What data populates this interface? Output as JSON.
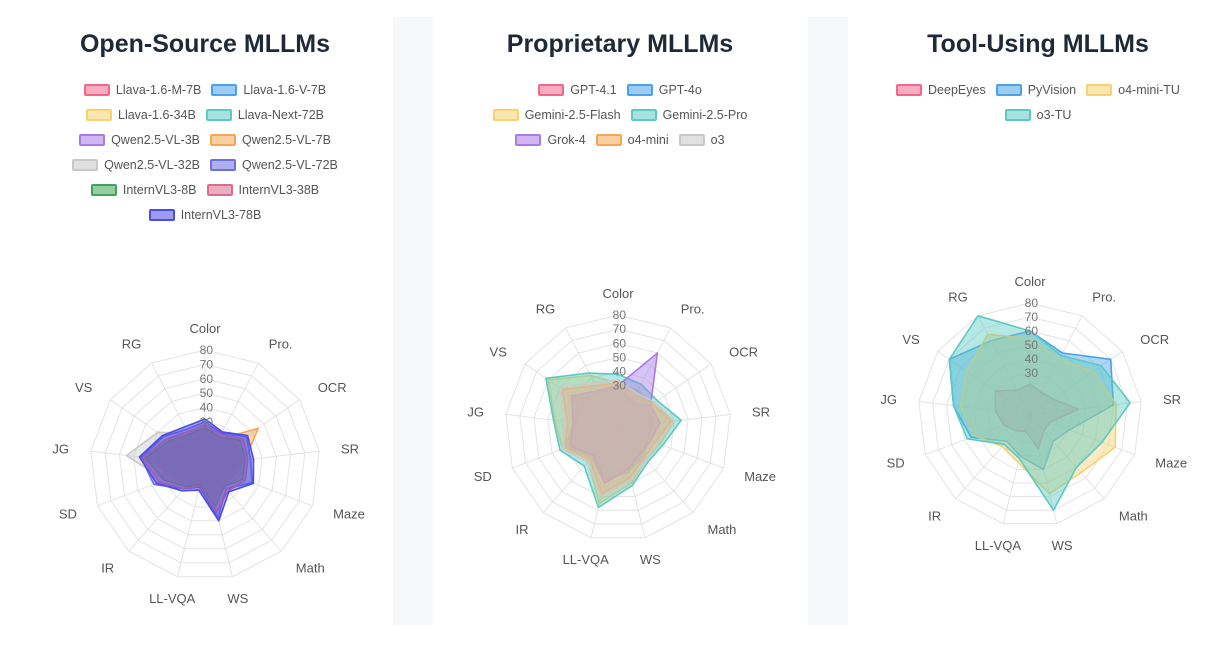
{
  "chart_data": [
    {
      "type": "radar",
      "title": "Open-Source MLLMs",
      "axes": [
        "Color",
        "Pro.",
        "OCR",
        "SR",
        "Maze",
        "Math",
        "WS",
        "LL-VQA",
        "IR",
        "SD",
        "JG",
        "VS",
        "RG"
      ],
      "ticks": [
        30,
        40,
        50,
        60,
        70,
        80
      ],
      "rmax": 80,
      "legend_rows": [
        [
          0,
          1
        ],
        [
          2,
          3
        ],
        [
          4,
          5
        ],
        [
          6,
          7
        ],
        [
          8,
          9
        ],
        [
          10
        ]
      ],
      "series": [
        {
          "name": "Llava-1.6-M-7B",
          "color": "#f2678a",
          "values": [
            15,
            12,
            13,
            14,
            12,
            10,
            15,
            12,
            12,
            14,
            18,
            14,
            12
          ]
        },
        {
          "name": "Llava-1.6-V-7B",
          "color": "#4aa3e8",
          "values": [
            18,
            14,
            15,
            16,
            14,
            12,
            18,
            13,
            14,
            16,
            22,
            15,
            14
          ]
        },
        {
          "name": "Llava-1.6-34B",
          "color": "#f7d270",
          "values": [
            20,
            18,
            20,
            22,
            18,
            20,
            28,
            15,
            16,
            18,
            30,
            20,
            16
          ]
        },
        {
          "name": "Llava-Next-72B",
          "color": "#5cc9c4",
          "values": [
            22,
            20,
            22,
            24,
            20,
            18,
            26,
            14,
            18,
            20,
            34,
            24,
            18
          ]
        },
        {
          "name": "Qwen2.5-VL-3B",
          "color": "#a97be8",
          "values": [
            24,
            22,
            26,
            26,
            20,
            15,
            20,
            12,
            16,
            22,
            40,
            30,
            20
          ]
        },
        {
          "name": "Qwen2.5-VL-7B",
          "color": "#f5a754",
          "values": [
            25,
            20,
            45,
            28,
            22,
            18,
            25,
            14,
            18,
            25,
            38,
            28,
            22
          ]
        },
        {
          "name": "Qwen2.5-VL-32B",
          "color": "#c9c9c9",
          "values": [
            28,
            22,
            30,
            30,
            25,
            20,
            30,
            15,
            20,
            30,
            55,
            40,
            25
          ]
        },
        {
          "name": "Qwen2.5-VL-72B",
          "color": "#6b6fe0",
          "values": [
            30,
            25,
            35,
            32,
            35,
            22,
            38,
            16,
            22,
            38,
            45,
            35,
            28
          ]
        },
        {
          "name": "InternVL3-8B",
          "color": "#3fa55a",
          "values": [
            26,
            22,
            30,
            28,
            28,
            20,
            30,
            14,
            20,
            30,
            42,
            30,
            24
          ]
        },
        {
          "name": "InternVL3-38B",
          "color": "#d96b8e",
          "values": [
            28,
            24,
            32,
            30,
            30,
            24,
            34,
            15,
            22,
            34,
            44,
            32,
            26
          ]
        },
        {
          "name": "InternVL3-78B",
          "color": "#4b4be6",
          "values": [
            32,
            26,
            36,
            34,
            36,
            25,
            40,
            18,
            24,
            36,
            46,
            36,
            30
          ]
        }
      ]
    },
    {
      "type": "radar",
      "title": "Proprietary MLLMs",
      "axes": [
        "Color",
        "Pro.",
        "OCR",
        "SR",
        "Maze",
        "Math",
        "WS",
        "LL-VQA",
        "IR",
        "SD",
        "JG",
        "VS",
        "RG"
      ],
      "ticks": [
        30,
        40,
        50,
        60,
        70,
        80
      ],
      "rmax": 80,
      "legend_rows": [
        [
          0,
          1
        ],
        [
          2,
          3
        ],
        [
          4,
          5,
          6
        ]
      ],
      "series": [
        {
          "name": "GPT-4.1",
          "color": "#f2678a",
          "values": [
            28,
            22,
            25,
            25,
            22,
            28,
            30,
            40,
            28,
            38,
            30,
            35,
            28
          ]
        },
        {
          "name": "GPT-4o",
          "color": "#4aa3e8",
          "values": [
            30,
            20,
            28,
            30,
            24,
            26,
            32,
            38,
            26,
            40,
            32,
            38,
            30
          ]
        },
        {
          "name": "Gemini-2.5-Flash",
          "color": "#f7d270",
          "values": [
            32,
            30,
            30,
            40,
            32,
            30,
            40,
            55,
            32,
            42,
            45,
            60,
            42
          ]
        },
        {
          "name": "Gemini-2.5-Pro",
          "color": "#5cc9c4",
          "values": [
            38,
            35,
            34,
            45,
            34,
            32,
            42,
            58,
            36,
            44,
            46,
            62,
            44
          ]
        },
        {
          "name": "Grok-4",
          "color": "#a97be8",
          "values": [
            30,
            60,
            28,
            30,
            25,
            24,
            30,
            40,
            26,
            36,
            32,
            40,
            30
          ]
        },
        {
          "name": "o4-mini",
          "color": "#f5a754",
          "values": [
            32,
            25,
            30,
            38,
            28,
            28,
            36,
            48,
            30,
            40,
            36,
            48,
            34
          ]
        },
        {
          "name": "o3",
          "color": "#c9c9c9",
          "values": [
            34,
            28,
            32,
            40,
            30,
            30,
            38,
            50,
            32,
            42,
            38,
            50,
            36
          ]
        }
      ]
    },
    {
      "type": "radar",
      "title": "Tool-Using MLLMs",
      "axes": [
        "Color",
        "Pro.",
        "OCR",
        "SR",
        "Maze",
        "Math",
        "WS",
        "LL-VQA",
        "IR",
        "SD",
        "JG",
        "VS",
        "RG"
      ],
      "ticks": [
        30,
        40,
        50,
        60,
        70,
        80
      ],
      "rmax": 80,
      "legend_rows": [
        [
          0,
          1,
          2
        ],
        [
          3
        ]
      ],
      "series": [
        {
          "name": "DeepEyes",
          "color": "#f2678a",
          "values": [
            22,
            18,
            20,
            35,
            15,
            15,
            25,
            12,
            15,
            20,
            25,
            30,
            20
          ]
        },
        {
          "name": "PyVision",
          "color": "#4aa3e8",
          "values": [
            60,
            50,
            70,
            60,
            30,
            25,
            40,
            30,
            25,
            45,
            55,
            70,
            60
          ]
        },
        {
          "name": "o4-mini-TU",
          "color": "#f7d270",
          "values": [
            55,
            45,
            55,
            62,
            65,
            55,
            58,
            35,
            30,
            42,
            50,
            55,
            65
          ]
        },
        {
          "name": "o3-TU",
          "color": "#5cc9c4",
          "values": [
            60,
            48,
            62,
            72,
            55,
            50,
            70,
            32,
            28,
            48,
            55,
            70,
            82
          ]
        }
      ]
    }
  ]
}
